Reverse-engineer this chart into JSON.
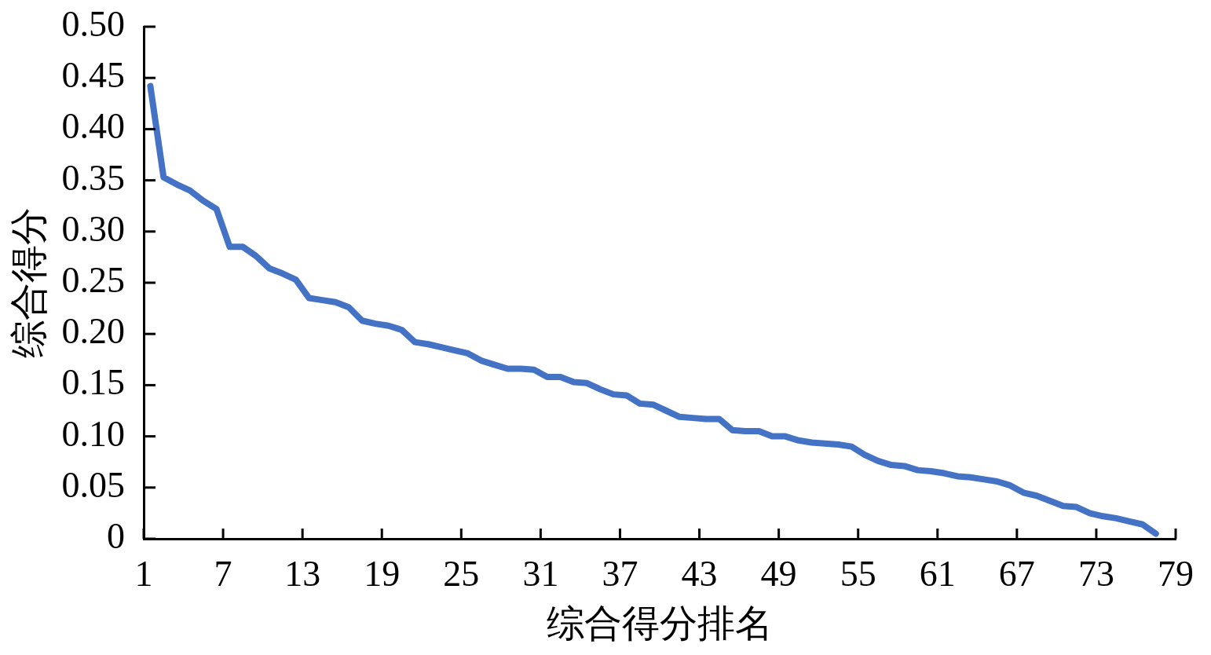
{
  "chart_data": {
    "type": "line",
    "xlabel": "综合得分排名",
    "ylabel": "综合得分",
    "x": [
      1.5,
      2.5,
      3.5,
      4.5,
      5.5,
      6.5,
      7.5,
      8.5,
      9.5,
      10.5,
      11.5,
      12.5,
      13.5,
      14.5,
      15.5,
      16.5,
      17.5,
      18.5,
      19.5,
      20.5,
      21.5,
      22.5,
      23.5,
      24.5,
      25.5,
      26.5,
      27.5,
      28.5,
      29.5,
      30.5,
      31.5,
      32.5,
      33.5,
      34.5,
      35.5,
      36.5,
      37.5,
      38.5,
      39.5,
      40.5,
      41.5,
      42.5,
      43.5,
      44.5,
      45.5,
      46.5,
      47.5,
      48.5,
      49.5,
      50.5,
      51.5,
      52.5,
      53.5,
      54.5,
      55.5,
      56.5,
      57.5,
      58.5,
      59.5,
      60.5,
      61.5,
      62.5,
      63.5,
      64.5,
      65.5,
      66.5,
      67.5,
      68.5,
      69.5,
      70.5,
      71.5,
      72.5,
      73.5,
      74.5,
      75.5,
      76.5,
      77.5
    ],
    "values": [
      0.442,
      0.353,
      0.346,
      0.34,
      0.33,
      0.322,
      0.285,
      0.285,
      0.276,
      0.264,
      0.259,
      0.253,
      0.235,
      0.233,
      0.231,
      0.226,
      0.213,
      0.21,
      0.208,
      0.204,
      0.192,
      0.19,
      0.187,
      0.184,
      0.181,
      0.174,
      0.17,
      0.166,
      0.166,
      0.165,
      0.158,
      0.158,
      0.153,
      0.152,
      0.146,
      0.141,
      0.14,
      0.132,
      0.131,
      0.125,
      0.119,
      0.118,
      0.117,
      0.117,
      0.106,
      0.105,
      0.105,
      0.1,
      0.1,
      0.096,
      0.094,
      0.093,
      0.092,
      0.09,
      0.082,
      0.076,
      0.072,
      0.071,
      0.067,
      0.066,
      0.064,
      0.061,
      0.06,
      0.058,
      0.056,
      0.052,
      0.045,
      0.042,
      0.037,
      0.032,
      0.031,
      0.025,
      0.022,
      0.02,
      0.017,
      0.014,
      0.005
    ],
    "color": "#4472c4",
    "xlim": [
      1,
      79
    ],
    "xticks": [
      1,
      7,
      13,
      19,
      25,
      31,
      37,
      43,
      49,
      55,
      61,
      67,
      73,
      79
    ],
    "ylim": [
      0,
      0.5
    ],
    "yticks": [
      0,
      0.05,
      {
        "value": 0.1,
        "label": "0.10"
      },
      0.15,
      {
        "value": 0.2,
        "label": "0.20"
      },
      0.25,
      {
        "value": 0.3,
        "label": "0.30"
      },
      0.35,
      {
        "value": 0.4,
        "label": "0.40"
      },
      0.45,
      {
        "value": 0.5,
        "label": "0.50"
      }
    ]
  }
}
